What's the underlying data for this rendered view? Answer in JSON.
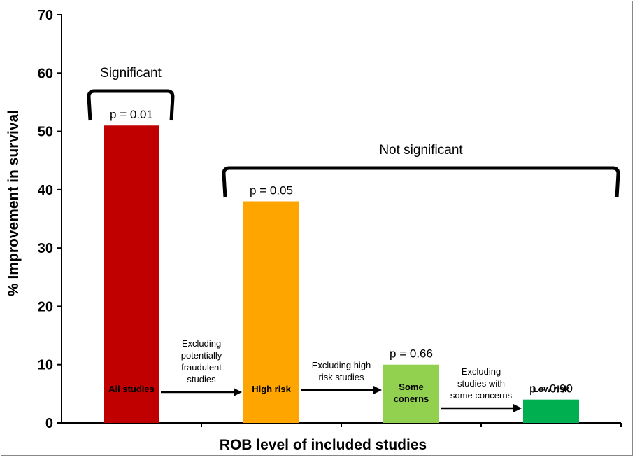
{
  "chart_data": {
    "type": "bar",
    "categories": [
      "All studies",
      "High risk",
      "Some conerns",
      "Low risk"
    ],
    "category_label_lines": [
      [
        "All studies"
      ],
      [
        "High risk"
      ],
      [
        "Some",
        "conerns"
      ],
      [
        "Low risk"
      ]
    ],
    "values": [
      51,
      38,
      10,
      4
    ],
    "colors": [
      "#c00000",
      "#ffa500",
      "#92d050",
      "#00b050"
    ],
    "p_values": [
      "p = 0.01",
      "p = 0.05",
      "p = 0.66",
      "p = 0.90"
    ],
    "ylabel": "% Improvement in survival",
    "xlabel": "ROB level of included studies",
    "ylim": [
      0,
      70
    ],
    "yticks": [
      0,
      10,
      20,
      30,
      40,
      50,
      60,
      70
    ],
    "grid": false,
    "arrows": [
      {
        "lines": [
          "Excluding",
          "potentially",
          "fraudulent",
          "studies"
        ]
      },
      {
        "lines": [
          "Excluding high",
          "risk studies"
        ]
      },
      {
        "lines": [
          "Excluding",
          "studies with",
          "some concerns"
        ]
      }
    ],
    "brackets": [
      {
        "label": "Significant",
        "covers": [
          "All studies"
        ]
      },
      {
        "label": "Not significant",
        "covers": [
          "High risk",
          "Some conerns",
          "Low risk"
        ]
      }
    ]
  }
}
